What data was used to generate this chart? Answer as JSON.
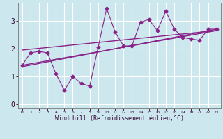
{
  "xlabel": "Windchill (Refroidissement éolien,°C)",
  "background_color": "#cce8ee",
  "line_color": "#882288",
  "grid_color": "#ffffff",
  "xlim": [
    -0.5,
    23.5
  ],
  "ylim": [
    -0.15,
    3.65
  ],
  "xticks": [
    0,
    1,
    2,
    3,
    4,
    5,
    6,
    7,
    8,
    9,
    10,
    11,
    12,
    13,
    14,
    15,
    16,
    17,
    18,
    19,
    20,
    21,
    22,
    23
  ],
  "yticks": [
    0,
    1,
    2,
    3
  ],
  "data_x": [
    0,
    1,
    2,
    3,
    4,
    5,
    6,
    7,
    8,
    9,
    10,
    11,
    12,
    13,
    14,
    15,
    16,
    17,
    18,
    19,
    20,
    21,
    22,
    23
  ],
  "data_y": [
    1.4,
    1.85,
    1.9,
    1.85,
    1.1,
    0.5,
    1.0,
    0.75,
    0.65,
    2.05,
    3.45,
    2.6,
    2.1,
    2.1,
    2.95,
    3.05,
    2.65,
    3.35,
    2.7,
    2.4,
    2.35,
    2.3,
    2.7,
    2.7
  ],
  "trend1_x": [
    0,
    23
  ],
  "trend1_y": [
    1.4,
    2.65
  ],
  "trend2_x": [
    0,
    23
  ],
  "trend2_y": [
    1.95,
    2.65
  ],
  "trend3_x": [
    0,
    23
  ],
  "trend3_y": [
    1.35,
    2.7
  ]
}
